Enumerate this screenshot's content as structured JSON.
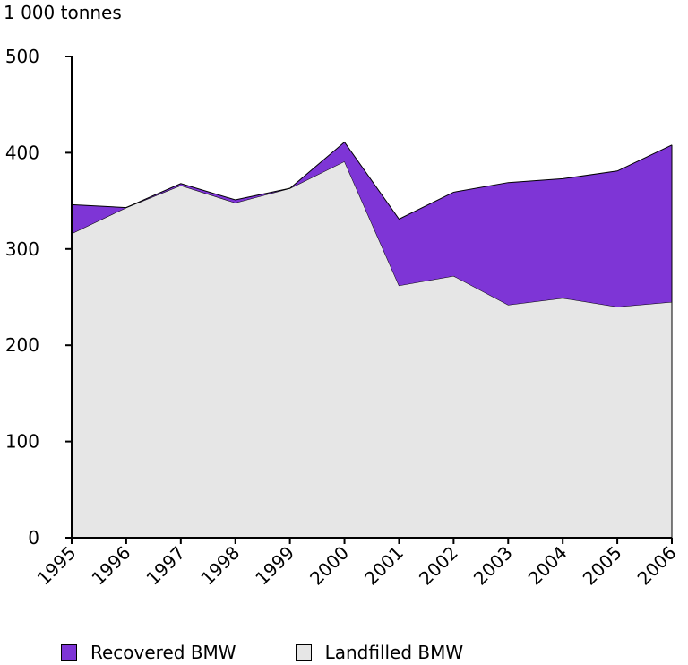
{
  "chart_data": {
    "type": "area",
    "stacked": true,
    "unit_label": "1 000 tonnes",
    "x": [
      "1995",
      "1996",
      "1997",
      "1998",
      "1999",
      "2000",
      "2001",
      "2002",
      "2003",
      "2004",
      "2005",
      "2006"
    ],
    "ylim": [
      0,
      500
    ],
    "yticks": [
      0,
      100,
      200,
      300,
      400,
      500
    ],
    "grid": false,
    "legend_position": "bottom",
    "series": [
      {
        "name": "Landfilled BMW",
        "color": "#e6e6e6",
        "values": [
          316,
          343,
          366,
          348,
          363,
          391,
          262,
          272,
          242,
          249,
          240,
          245
        ]
      },
      {
        "name": "Recovered BMW",
        "color": "#7e35d6",
        "values": [
          30,
          0,
          2,
          3,
          0,
          20,
          69,
          87,
          127,
          124,
          141,
          163
        ]
      }
    ]
  },
  "legend": {
    "items": [
      {
        "label": "Recovered BMW",
        "color": "#7e35d6"
      },
      {
        "label": "Landfilled BMW",
        "color": "#e6e6e6"
      }
    ]
  }
}
